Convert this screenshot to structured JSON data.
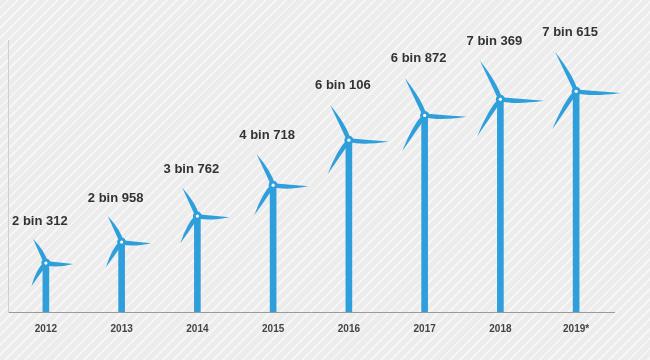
{
  "chart_data": {
    "type": "bar",
    "categories": [
      "2012",
      "2013",
      "2014",
      "2015",
      "2016",
      "2017",
      "2018",
      "2019*"
    ],
    "values": [
      2312,
      2958,
      3762,
      4718,
      6106,
      6872,
      7369,
      7615
    ],
    "value_labels": [
      "2 bin 312",
      "2 bin 958",
      "3 bin 762",
      "4 bin 718",
      "6 bin 106",
      "6 bin 872",
      "7 bin 369",
      "7 bin 615"
    ],
    "color": "#2f9fdc",
    "ylim": [
      800,
      9200
    ],
    "grid": false,
    "data_labels": true,
    "tick_labels": "x"
  }
}
